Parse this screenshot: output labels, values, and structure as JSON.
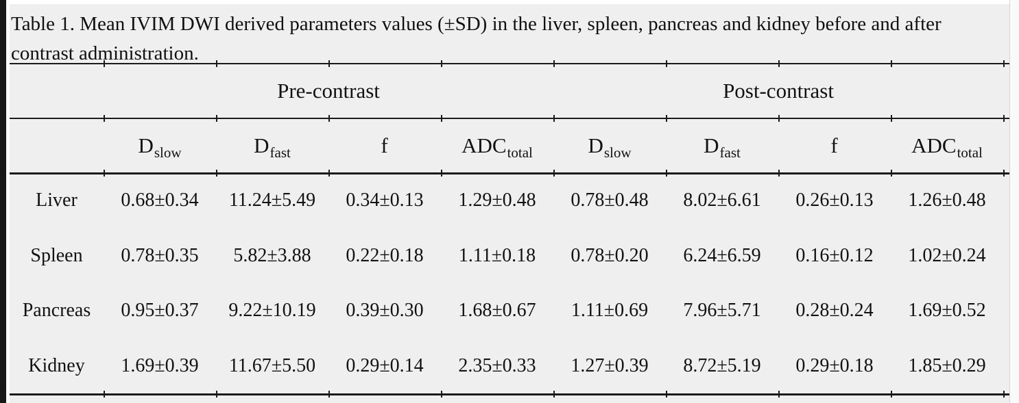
{
  "caption": "Table 1. Mean IVIM DWI derived parameters values (±SD) in the liver, spleen, pancreas and kidney before and after contrast administration.",
  "table": {
    "group_headers": [
      {
        "label": "Pre-contrast"
      },
      {
        "label": "Post-contrast"
      }
    ],
    "param_headers": [
      {
        "base": "D",
        "sub": "slow"
      },
      {
        "base": "D",
        "sub": "fast"
      },
      {
        "base": "f",
        "sub": ""
      },
      {
        "base": "ADC",
        "sub": "total"
      },
      {
        "base": "D",
        "sub": "slow"
      },
      {
        "base": "D",
        "sub": "fast"
      },
      {
        "base": "f",
        "sub": ""
      },
      {
        "base": "ADC",
        "sub": "total"
      }
    ],
    "rows": [
      {
        "organ": "Liver",
        "values": [
          "0.68±0.34",
          "11.24±5.49",
          "0.34±0.13",
          "1.29±0.48",
          "0.78±0.48",
          "8.02±6.61",
          "0.26±0.13",
          "1.26±0.48"
        ]
      },
      {
        "organ": "Spleen",
        "values": [
          "0.78±0.35",
          "5.82±3.88",
          "0.22±0.18",
          "1.11±0.18",
          "0.78±0.20",
          "6.24±6.59",
          "0.16±0.12",
          "1.02±0.24"
        ]
      },
      {
        "organ": "Pancreas",
        "values": [
          "0.95±0.37",
          "9.22±10.19",
          "0.39±0.30",
          "1.68±0.67",
          "1.11±0.69",
          "7.96±5.71",
          "0.28±0.24",
          "1.69±0.52"
        ]
      },
      {
        "organ": "Kidney",
        "values": [
          "1.69±0.39",
          "11.67±5.50",
          "0.29±0.14",
          "2.35±0.33",
          "1.27±0.39",
          "8.72±5.19",
          "0.29±0.18",
          "1.85±0.29"
        ]
      }
    ]
  },
  "colors": {
    "page_background": "#efeff0",
    "text": "#121212",
    "rule": "#1a1a1a",
    "scan_edge": "#181818"
  }
}
